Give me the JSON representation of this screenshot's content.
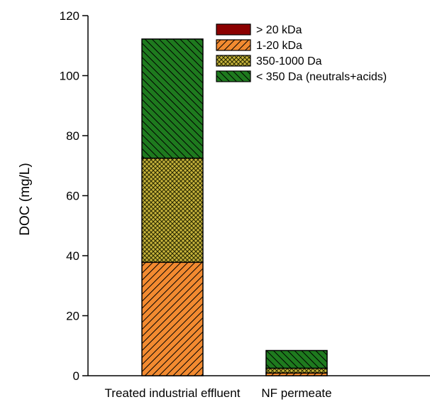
{
  "chart_data": {
    "type": "bar",
    "stacked": true,
    "title": "",
    "xlabel": "",
    "ylabel": "DOC (mg/L)",
    "ylim": [
      0,
      120
    ],
    "yticks": [
      0,
      20,
      40,
      60,
      80,
      100,
      120
    ],
    "categories": [
      "Treated industrial effluent",
      "NF permeate"
    ],
    "legend_position": "top-right",
    "grid": false,
    "series": [
      {
        "name": "> 20 kDa",
        "values": [
          0.0,
          0.0
        ],
        "color": "#8b0000",
        "pattern": "solid"
      },
      {
        "name": "1-20 kDa",
        "values": [
          37.8,
          0.9
        ],
        "color": "#f28a30",
        "pattern": "diagonal-hatch"
      },
      {
        "name": "350-1000 Da",
        "values": [
          34.7,
          1.6
        ],
        "color": "#b5a23a",
        "pattern": "crosshatch-dots"
      },
      {
        "name": "< 350 Da (neutrals+acids)",
        "values": [
          39.7,
          5.9
        ],
        "color": "#1e7a1e",
        "pattern": "diagonal-hatch"
      }
    ]
  }
}
